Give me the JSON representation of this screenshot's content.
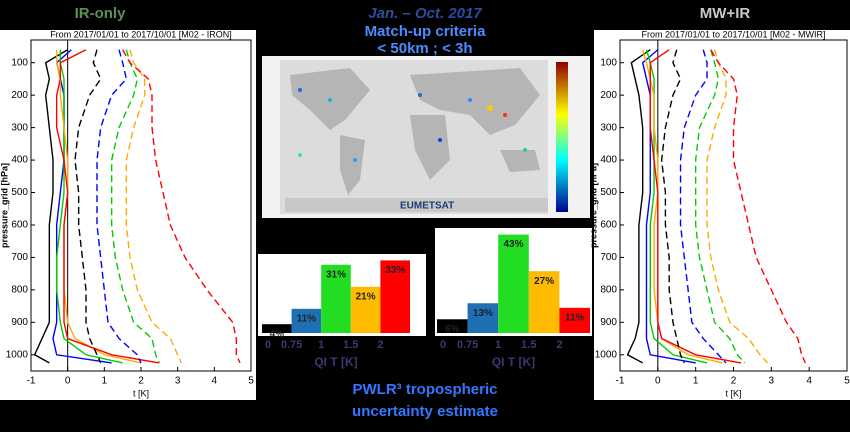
{
  "headings": {
    "left": "IR-only",
    "period": "Jan. – Oct. 2017",
    "criteria": "Match-up criteria",
    "limits": "< 50km ;  < 3h",
    "right": "MW+IR",
    "caption1": "PWLR³ tropospheric",
    "caption2": "uncertainty estimate"
  },
  "map": {
    "label": "EUMETSAT"
  },
  "chart_data": [
    {
      "type": "profile",
      "subtitle": "From 2017/01/01 to 2017/10/01 [M02 - IRON]",
      "xlabel": "t [K]",
      "ylabel": "pressure_grid [hPa]",
      "xlim": [
        -1,
        5
      ],
      "xticks": [
        -1,
        0,
        1,
        2,
        3,
        4,
        5
      ],
      "ylim": [
        1050,
        30
      ],
      "yticks": [
        100,
        200,
        300,
        400,
        500,
        600,
        700,
        800,
        900,
        1000
      ],
      "y": [
        60,
        100,
        150,
        200,
        300,
        400,
        500,
        600,
        700,
        800,
        900,
        950,
        1000,
        1025
      ],
      "series": [
        {
          "color": "#000000",
          "dash": false,
          "values": [
            0,
            -0.6,
            -0.5,
            -0.6,
            -0.5,
            -0.4,
            -0.4,
            -0.5,
            -0.5,
            -0.5,
            -0.5,
            -0.7,
            -0.9,
            -0.5
          ]
        },
        {
          "color": "#0000ff",
          "dash": false,
          "values": [
            0.1,
            -0.3,
            -0.2,
            -0.1,
            -0.1,
            -0.1,
            -0.2,
            -0.3,
            -0.3,
            -0.3,
            -0.3,
            -0.4,
            -0.3,
            1.2
          ]
        },
        {
          "color": "#00cc00",
          "dash": false,
          "values": [
            -0.2,
            -0.2,
            -0.1,
            -0.1,
            -0.1,
            -0.1,
            -0.1,
            -0.2,
            -0.3,
            -0.3,
            -0.2,
            -0.1,
            0.5,
            1.5
          ]
        },
        {
          "color": "#ffaa00",
          "dash": false,
          "values": [
            -0.3,
            -0.3,
            -0.2,
            -0.2,
            -0.1,
            0,
            0,
            -0.1,
            -0.1,
            -0.1,
            0,
            0.2,
            1,
            2
          ]
        },
        {
          "color": "#ff0000",
          "dash": false,
          "values": [
            0.5,
            -0.2,
            -0.2,
            -0.3,
            -0.3,
            -0.1,
            0,
            -0.1,
            -0.1,
            -0.1,
            -0.1,
            0,
            1.2,
            2.5
          ]
        },
        {
          "color": "#000000",
          "dash": true,
          "values": [
            0.8,
            0.7,
            0.9,
            0.6,
            0.3,
            0.2,
            0.3,
            0.3,
            0.4,
            0.5,
            0.5,
            0.6,
            0.8,
            0.9
          ]
        },
        {
          "color": "#0000ff",
          "dash": true,
          "values": [
            1.4,
            1.5,
            1.6,
            1.2,
            0.9,
            0.8,
            0.8,
            0.8,
            0.9,
            1,
            1.1,
            1.4,
            1.9,
            2
          ]
        },
        {
          "color": "#00cc00",
          "dash": true,
          "values": [
            1.6,
            1.7,
            1.9,
            1.8,
            1.4,
            1.2,
            1.2,
            1.2,
            1.3,
            1.5,
            1.8,
            2.3,
            2.4,
            2.5
          ]
        },
        {
          "color": "#ffaa00",
          "dash": true,
          "values": [
            1.7,
            1.8,
            2.1,
            2.1,
            1.8,
            1.6,
            1.6,
            1.6,
            1.7,
            1.9,
            2.3,
            2.8,
            3,
            3.1
          ]
        },
        {
          "color": "#ff0000",
          "dash": true,
          "values": [
            1.5,
            1.7,
            2.2,
            2.3,
            2.3,
            2.4,
            2.6,
            2.8,
            3.2,
            3.8,
            4.5,
            4.6,
            4.6,
            4.7
          ]
        }
      ]
    },
    {
      "type": "bar",
      "xlabel": "QI T [K]",
      "categories": [
        "0",
        "0.75",
        "1",
        "1.5",
        "2"
      ],
      "values": [
        4,
        11,
        31,
        21,
        33
      ],
      "value_labels": [
        "4%",
        "11%",
        "31%",
        "21%",
        "33%"
      ],
      "colors": [
        "#000000",
        "#1f6fb5",
        "#22dd22",
        "#ffbb00",
        "#ff0000"
      ],
      "ylim": [
        0,
        35
      ]
    },
    {
      "type": "bar",
      "xlabel": "QI T [K]",
      "categories": [
        "0",
        "0.75",
        "1",
        "1.5",
        "2"
      ],
      "values": [
        6,
        13,
        43,
        27,
        11
      ],
      "value_labels": [
        "6%",
        "13%",
        "43%",
        "27%",
        "11%"
      ],
      "colors": [
        "#000000",
        "#1f6fb5",
        "#22dd22",
        "#ffbb00",
        "#ff0000"
      ],
      "ylim": [
        0,
        45
      ]
    },
    {
      "type": "profile",
      "subtitle": "From 2017/01/01 to 2017/10/01 [M02 - MWIR]",
      "xlabel": "t [K]",
      "ylabel": "pressure_grid [hPa]",
      "xlim": [
        -1,
        5
      ],
      "xticks": [
        -1,
        0,
        1,
        2,
        3,
        4,
        5
      ],
      "ylim": [
        1050,
        30
      ],
      "yticks": [
        100,
        200,
        300,
        400,
        500,
        600,
        700,
        800,
        900,
        1000
      ],
      "y": [
        60,
        100,
        150,
        200,
        300,
        400,
        500,
        600,
        700,
        800,
        900,
        950,
        1000,
        1025
      ],
      "series": [
        {
          "color": "#000000",
          "dash": false,
          "values": [
            -0.2,
            -0.7,
            -0.6,
            -0.5,
            -0.4,
            -0.4,
            -0.4,
            -0.5,
            -0.5,
            -0.5,
            -0.5,
            -0.6,
            -0.8,
            -0.4
          ]
        },
        {
          "color": "#0000ff",
          "dash": false,
          "values": [
            0,
            -0.4,
            -0.3,
            -0.2,
            -0.2,
            -0.2,
            -0.2,
            -0.3,
            -0.3,
            -0.3,
            -0.3,
            -0.3,
            -0.2,
            1
          ]
        },
        {
          "color": "#00cc00",
          "dash": false,
          "values": [
            -0.3,
            -0.2,
            -0.1,
            -0.1,
            -0.1,
            -0.1,
            -0.1,
            -0.2,
            -0.2,
            -0.2,
            -0.2,
            -0.1,
            0.4,
            1.3
          ]
        },
        {
          "color": "#ffaa00",
          "dash": false,
          "values": [
            -0.4,
            -0.3,
            -0.2,
            -0.1,
            -0.1,
            0,
            0,
            -0.1,
            -0.1,
            -0.1,
            0,
            0.1,
            0.8,
            1.7
          ]
        },
        {
          "color": "#ff0000",
          "dash": false,
          "values": [
            0.3,
            -0.2,
            -0.2,
            -0.2,
            -0.2,
            -0.1,
            0,
            0,
            0,
            0,
            0,
            0.1,
            1,
            2.2
          ]
        },
        {
          "color": "#000000",
          "dash": true,
          "values": [
            0.5,
            0.4,
            0.6,
            0.4,
            0.2,
            0.1,
            0.2,
            0.2,
            0.3,
            0.3,
            0.4,
            0.5,
            0.6,
            0.7
          ]
        },
        {
          "color": "#0000ff",
          "dash": true,
          "values": [
            1.2,
            1.3,
            1.3,
            1,
            0.7,
            0.6,
            0.6,
            0.6,
            0.7,
            0.8,
            0.9,
            1.2,
            1.6,
            1.8
          ]
        },
        {
          "color": "#00cc00",
          "dash": true,
          "values": [
            1.4,
            1.5,
            1.6,
            1.5,
            1.1,
            1,
            1,
            1,
            1.1,
            1.3,
            1.5,
            1.9,
            2.1,
            2.3
          ]
        },
        {
          "color": "#ffaa00",
          "dash": true,
          "values": [
            1.5,
            1.6,
            1.8,
            1.8,
            1.5,
            1.3,
            1.3,
            1.3,
            1.4,
            1.6,
            1.9,
            2.4,
            2.7,
            2.9
          ]
        },
        {
          "color": "#ff0000",
          "dash": true,
          "values": [
            1.4,
            1.6,
            2,
            2.1,
            2,
            2,
            2.2,
            2.4,
            2.6,
            3,
            3.4,
            3.7,
            3.8,
            3.9
          ]
        }
      ]
    }
  ]
}
